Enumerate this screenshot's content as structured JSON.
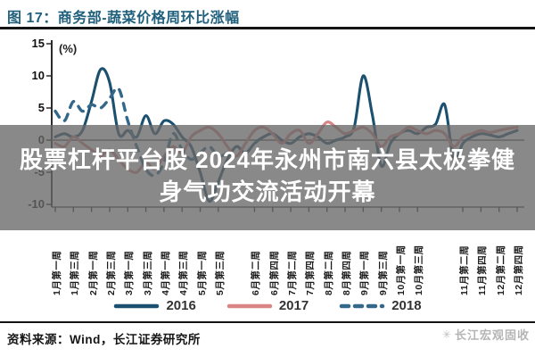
{
  "figure": {
    "title": "图 17：商务部-蔬菜价格周环比涨幅"
  },
  "watermark": {
    "text": "股票杠杆平台股 2024年永州市南六县太极拳健身气功交流活动开幕"
  },
  "chart_data": {
    "type": "line",
    "title": "商务部-蔬菜价格周环比涨幅",
    "unit_label": "(%)",
    "ylabel": "%",
    "ylim": [
      -10,
      15
    ],
    "yticks": [
      15,
      10,
      5,
      0,
      -5,
      -10
    ],
    "grid": false,
    "legend_position": "bottom",
    "x_axis": {
      "labels": [
        "1月第一周",
        "1月第三周",
        "2月第一周",
        "2月第三周",
        "3月第一周",
        "3月第三周",
        "4月第一周",
        "4月第三周",
        "5月第一周",
        "5月第三周",
        "6月第二周",
        "6月第四周",
        "7月第二周",
        "7月第四周",
        "8月第二周",
        "8月第四周",
        "9月第一周",
        "9月第三周",
        "10月第一周",
        "10月第三周",
        "11月第二周",
        "11月第四周",
        "12月第二周",
        "12月第四周"
      ],
      "label_weeks": [
        1,
        3,
        5,
        7,
        9,
        11,
        13,
        15,
        17,
        19,
        23,
        25,
        27,
        29,
        31,
        33,
        35,
        37,
        39,
        41,
        46,
        48,
        50,
        52
      ],
      "total_weeks": 52
    },
    "series": [
      {
        "name": "2016",
        "color": "#1b506f",
        "style": "solid",
        "values": [
          0.5,
          1,
          0.5,
          1.5,
          6,
          11,
          9,
          1,
          1.5,
          0.5,
          3.8,
          1,
          3,
          2.5,
          0.5,
          -1,
          -5,
          -9.5,
          -6.5,
          -3,
          -1,
          -2,
          -0.5,
          0.5,
          1,
          0,
          -0.5,
          0.5,
          1,
          0.5,
          -0.5,
          0,
          0.5,
          2,
          10,
          4,
          -4,
          -0.5,
          1,
          1.5,
          1,
          2,
          2.5,
          5.5,
          -3,
          -0.5,
          0.5,
          1,
          0.8,
          0.5,
          1,
          1.5
        ]
      },
      {
        "name": "2017",
        "color": "#d98585",
        "style": "solid",
        "values": [
          -0.5,
          -1,
          0.5,
          -0.5,
          -1.5,
          -2.5,
          -1.5,
          -3,
          -4.5,
          -5,
          -3.5,
          -4.5,
          -2.5,
          -1,
          -2,
          0.5,
          1.5,
          2,
          1,
          -1,
          -2.5,
          -0.5,
          1.5,
          2,
          1,
          -0.5,
          1,
          1.5,
          -0.5,
          1,
          2.8,
          2,
          1,
          1.5,
          2,
          1,
          -1,
          0.5,
          1,
          2,
          1.5,
          1,
          1.5,
          1,
          -1,
          0.5,
          1,
          1.5,
          1.2,
          1.5,
          1.8,
          2
        ]
      },
      {
        "name": "2018",
        "color": "#34688a",
        "style": "dashed",
        "values": [
          4.5,
          3,
          6,
          4.5,
          5.5,
          5,
          6.5,
          8,
          3,
          -1,
          -4.5,
          -5.5,
          -3.5,
          1,
          -1.5,
          -3,
          -2,
          -1,
          -2.5,
          -2
        ]
      }
    ]
  },
  "footer": {
    "source": "资料来源：Wind，长江证券研究所",
    "logo": "长江宏观固收",
    "logo_icon": "✳"
  }
}
